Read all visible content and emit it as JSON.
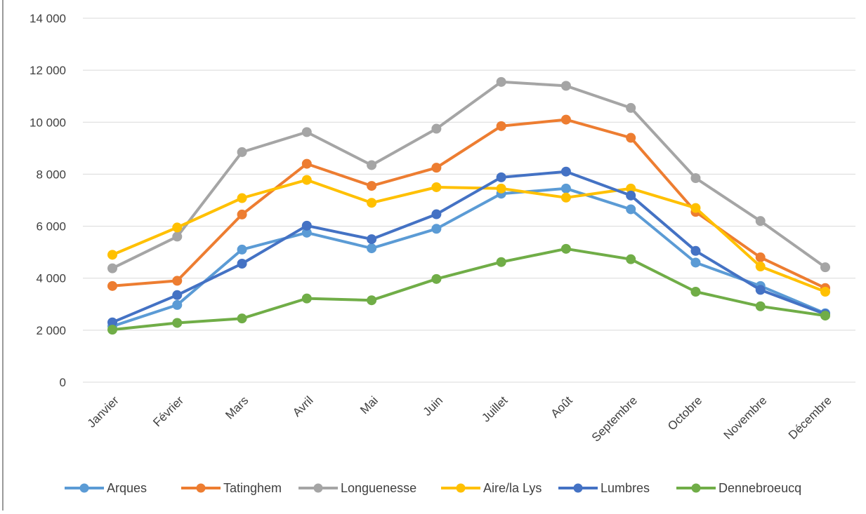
{
  "chart_data": {
    "type": "line",
    "categories": [
      "Janvier",
      "Février",
      "Mars",
      "Avril",
      "Mai",
      "Juin",
      "Juillet",
      "Août",
      "Septembre",
      "Octobre",
      "Novembre",
      "Décembre"
    ],
    "ylim": [
      0,
      14000
    ],
    "yticks": [
      "0",
      "2 000",
      "4 000",
      "6 000",
      "8 000",
      "10 000",
      "12 000",
      "14 000"
    ],
    "grid": true,
    "legend_position": "bottom",
    "title": "",
    "xlabel": "",
    "ylabel": "",
    "series": [
      {
        "name": "Arques",
        "color": "#5B9BD5",
        "values": [
          2150,
          2970,
          5100,
          5750,
          5150,
          5900,
          7250,
          7450,
          6650,
          4600,
          3700,
          2650
        ]
      },
      {
        "name": "Tatinghem",
        "color": "#ED7D31",
        "values": [
          3700,
          3900,
          6450,
          8400,
          7550,
          8250,
          9850,
          10100,
          9400,
          6550,
          4800,
          3620
        ]
      },
      {
        "name": "Longuenesse",
        "color": "#A5A5A5",
        "values": [
          4380,
          5600,
          8850,
          9620,
          8350,
          9750,
          11550,
          11400,
          10550,
          7850,
          6200,
          4420
        ]
      },
      {
        "name": "Aire/la Lys",
        "color": "#FFC000",
        "values": [
          4900,
          5950,
          7080,
          7780,
          6900,
          7500,
          7450,
          7100,
          7450,
          6700,
          4450,
          3480
        ]
      },
      {
        "name": "Lumbres",
        "color": "#4472C4",
        "values": [
          2300,
          3350,
          4560,
          6020,
          5500,
          6460,
          7880,
          8100,
          7180,
          5050,
          3550,
          2620
        ]
      },
      {
        "name": "Dennebroeucq",
        "color": "#70AD47",
        "values": [
          2020,
          2280,
          2450,
          3220,
          3150,
          3970,
          4620,
          5130,
          4730,
          3480,
          2920,
          2560
        ]
      }
    ]
  }
}
